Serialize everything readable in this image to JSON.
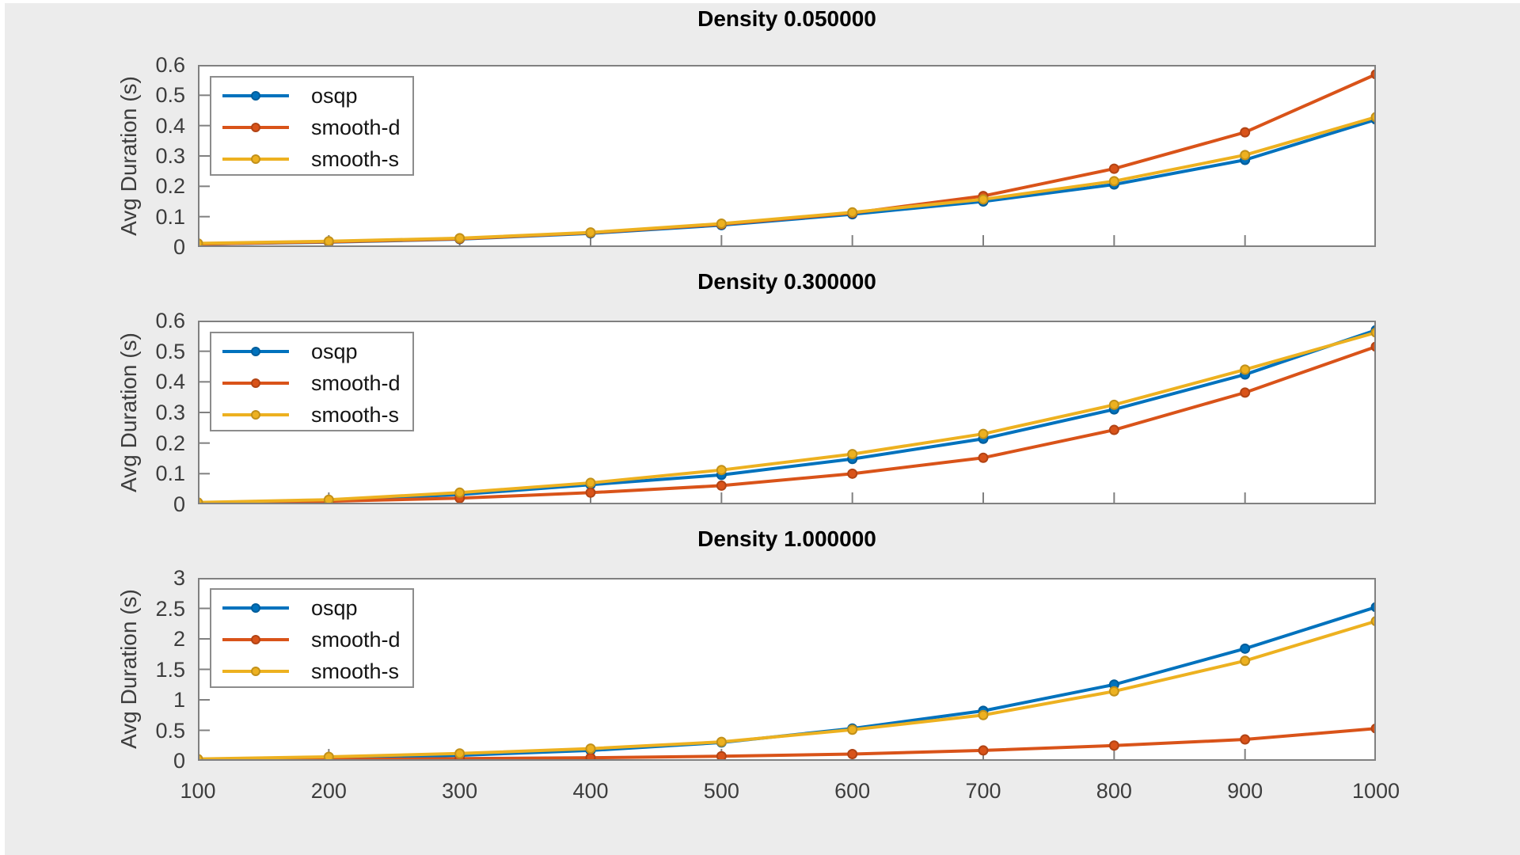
{
  "figure": {
    "background_color": "#ECECEC",
    "axes_background_color": "#FFFFFF",
    "spine_color": "#808080",
    "tick_label_color": "#3D3D3D",
    "title_color": "#000000",
    "legend_labels": [
      "osqp",
      "smooth-d",
      "smooth-s"
    ],
    "series_colors": {
      "osqp": "#0072BD",
      "smooth_d": "#D95319",
      "smooth_s": "#EDB120"
    }
  },
  "chart_data": [
    {
      "type": "line",
      "title": "Density 0.050000",
      "xlabel": "",
      "ylabel": "Avg Duration (s)",
      "xlim": [
        100,
        1000
      ],
      "ylim": [
        0,
        0.6
      ],
      "x": [
        100,
        200,
        300,
        400,
        500,
        600,
        700,
        800,
        900,
        1000
      ],
      "yticks": [
        0,
        0.1,
        0.2,
        0.3,
        0.4,
        0.5,
        0.6
      ],
      "ytick_labels": [
        "0",
        "0.1",
        "0.2",
        "0.3",
        "0.4",
        "0.5",
        "0.6"
      ],
      "grid": false,
      "legend_position": "top-left",
      "series": [
        {
          "name": "osqp",
          "color": "#0072BD",
          "values": [
            0.01,
            0.016,
            0.026,
            0.045,
            0.072,
            0.108,
            0.15,
            0.206,
            0.287,
            0.42
          ]
        },
        {
          "name": "smooth-d",
          "color": "#D95319",
          "values": [
            0.01,
            0.017,
            0.027,
            0.047,
            0.075,
            0.112,
            0.168,
            0.258,
            0.378,
            0.569
          ]
        },
        {
          "name": "smooth-s",
          "color": "#EDB120",
          "values": [
            0.012,
            0.019,
            0.029,
            0.048,
            0.077,
            0.114,
            0.157,
            0.217,
            0.303,
            0.428
          ]
        }
      ]
    },
    {
      "type": "line",
      "title": "Density 0.300000",
      "xlabel": "",
      "ylabel": "Avg Duration (s)",
      "xlim": [
        100,
        1000
      ],
      "ylim": [
        0,
        0.6
      ],
      "x": [
        100,
        200,
        300,
        400,
        500,
        600,
        700,
        800,
        900,
        1000
      ],
      "yticks": [
        0,
        0.1,
        0.2,
        0.3,
        0.4,
        0.5,
        0.6
      ],
      "ytick_labels": [
        "0",
        "0.1",
        "0.2",
        "0.3",
        "0.4",
        "0.5",
        "0.6"
      ],
      "grid": false,
      "legend_position": "top-left",
      "series": [
        {
          "name": "osqp",
          "color": "#0072BD",
          "values": [
            0.005,
            0.012,
            0.032,
            0.064,
            0.096,
            0.148,
            0.214,
            0.31,
            0.424,
            0.569
          ]
        },
        {
          "name": "smooth-d",
          "color": "#D95319",
          "values": [
            0.004,
            0.01,
            0.02,
            0.038,
            0.061,
            0.1,
            0.152,
            0.243,
            0.365,
            0.515
          ]
        },
        {
          "name": "smooth-s",
          "color": "#EDB120",
          "values": [
            0.006,
            0.015,
            0.038,
            0.07,
            0.112,
            0.164,
            0.23,
            0.325,
            0.44,
            0.561
          ]
        }
      ]
    },
    {
      "type": "line",
      "title": "Density 1.000000",
      "xlabel": "",
      "ylabel": "Avg Duration (s)",
      "xlim": [
        100,
        1000
      ],
      "ylim": [
        0,
        3
      ],
      "x": [
        100,
        200,
        300,
        400,
        500,
        600,
        700,
        800,
        900,
        1000
      ],
      "yticks": [
        0,
        0.5,
        1,
        1.5,
        2,
        2.5,
        3
      ],
      "ytick_labels": [
        "0",
        "0.5",
        "1",
        "1.5",
        "2",
        "2.5",
        "3"
      ],
      "xtick_labels": [
        "100",
        "200",
        "300",
        "400",
        "500",
        "600",
        "700",
        "800",
        "900",
        "1000"
      ],
      "grid": false,
      "legend_position": "top-left",
      "series": [
        {
          "name": "osqp",
          "color": "#0072BD",
          "values": [
            0.02,
            0.045,
            0.09,
            0.17,
            0.3,
            0.53,
            0.82,
            1.25,
            1.84,
            2.52
          ]
        },
        {
          "name": "smooth-d",
          "color": "#D95319",
          "values": [
            0.01,
            0.02,
            0.035,
            0.05,
            0.075,
            0.11,
            0.17,
            0.25,
            0.35,
            0.53
          ]
        },
        {
          "name": "smooth-s",
          "color": "#EDB120",
          "values": [
            0.03,
            0.065,
            0.12,
            0.2,
            0.31,
            0.51,
            0.75,
            1.14,
            1.64,
            2.29
          ]
        }
      ]
    }
  ]
}
